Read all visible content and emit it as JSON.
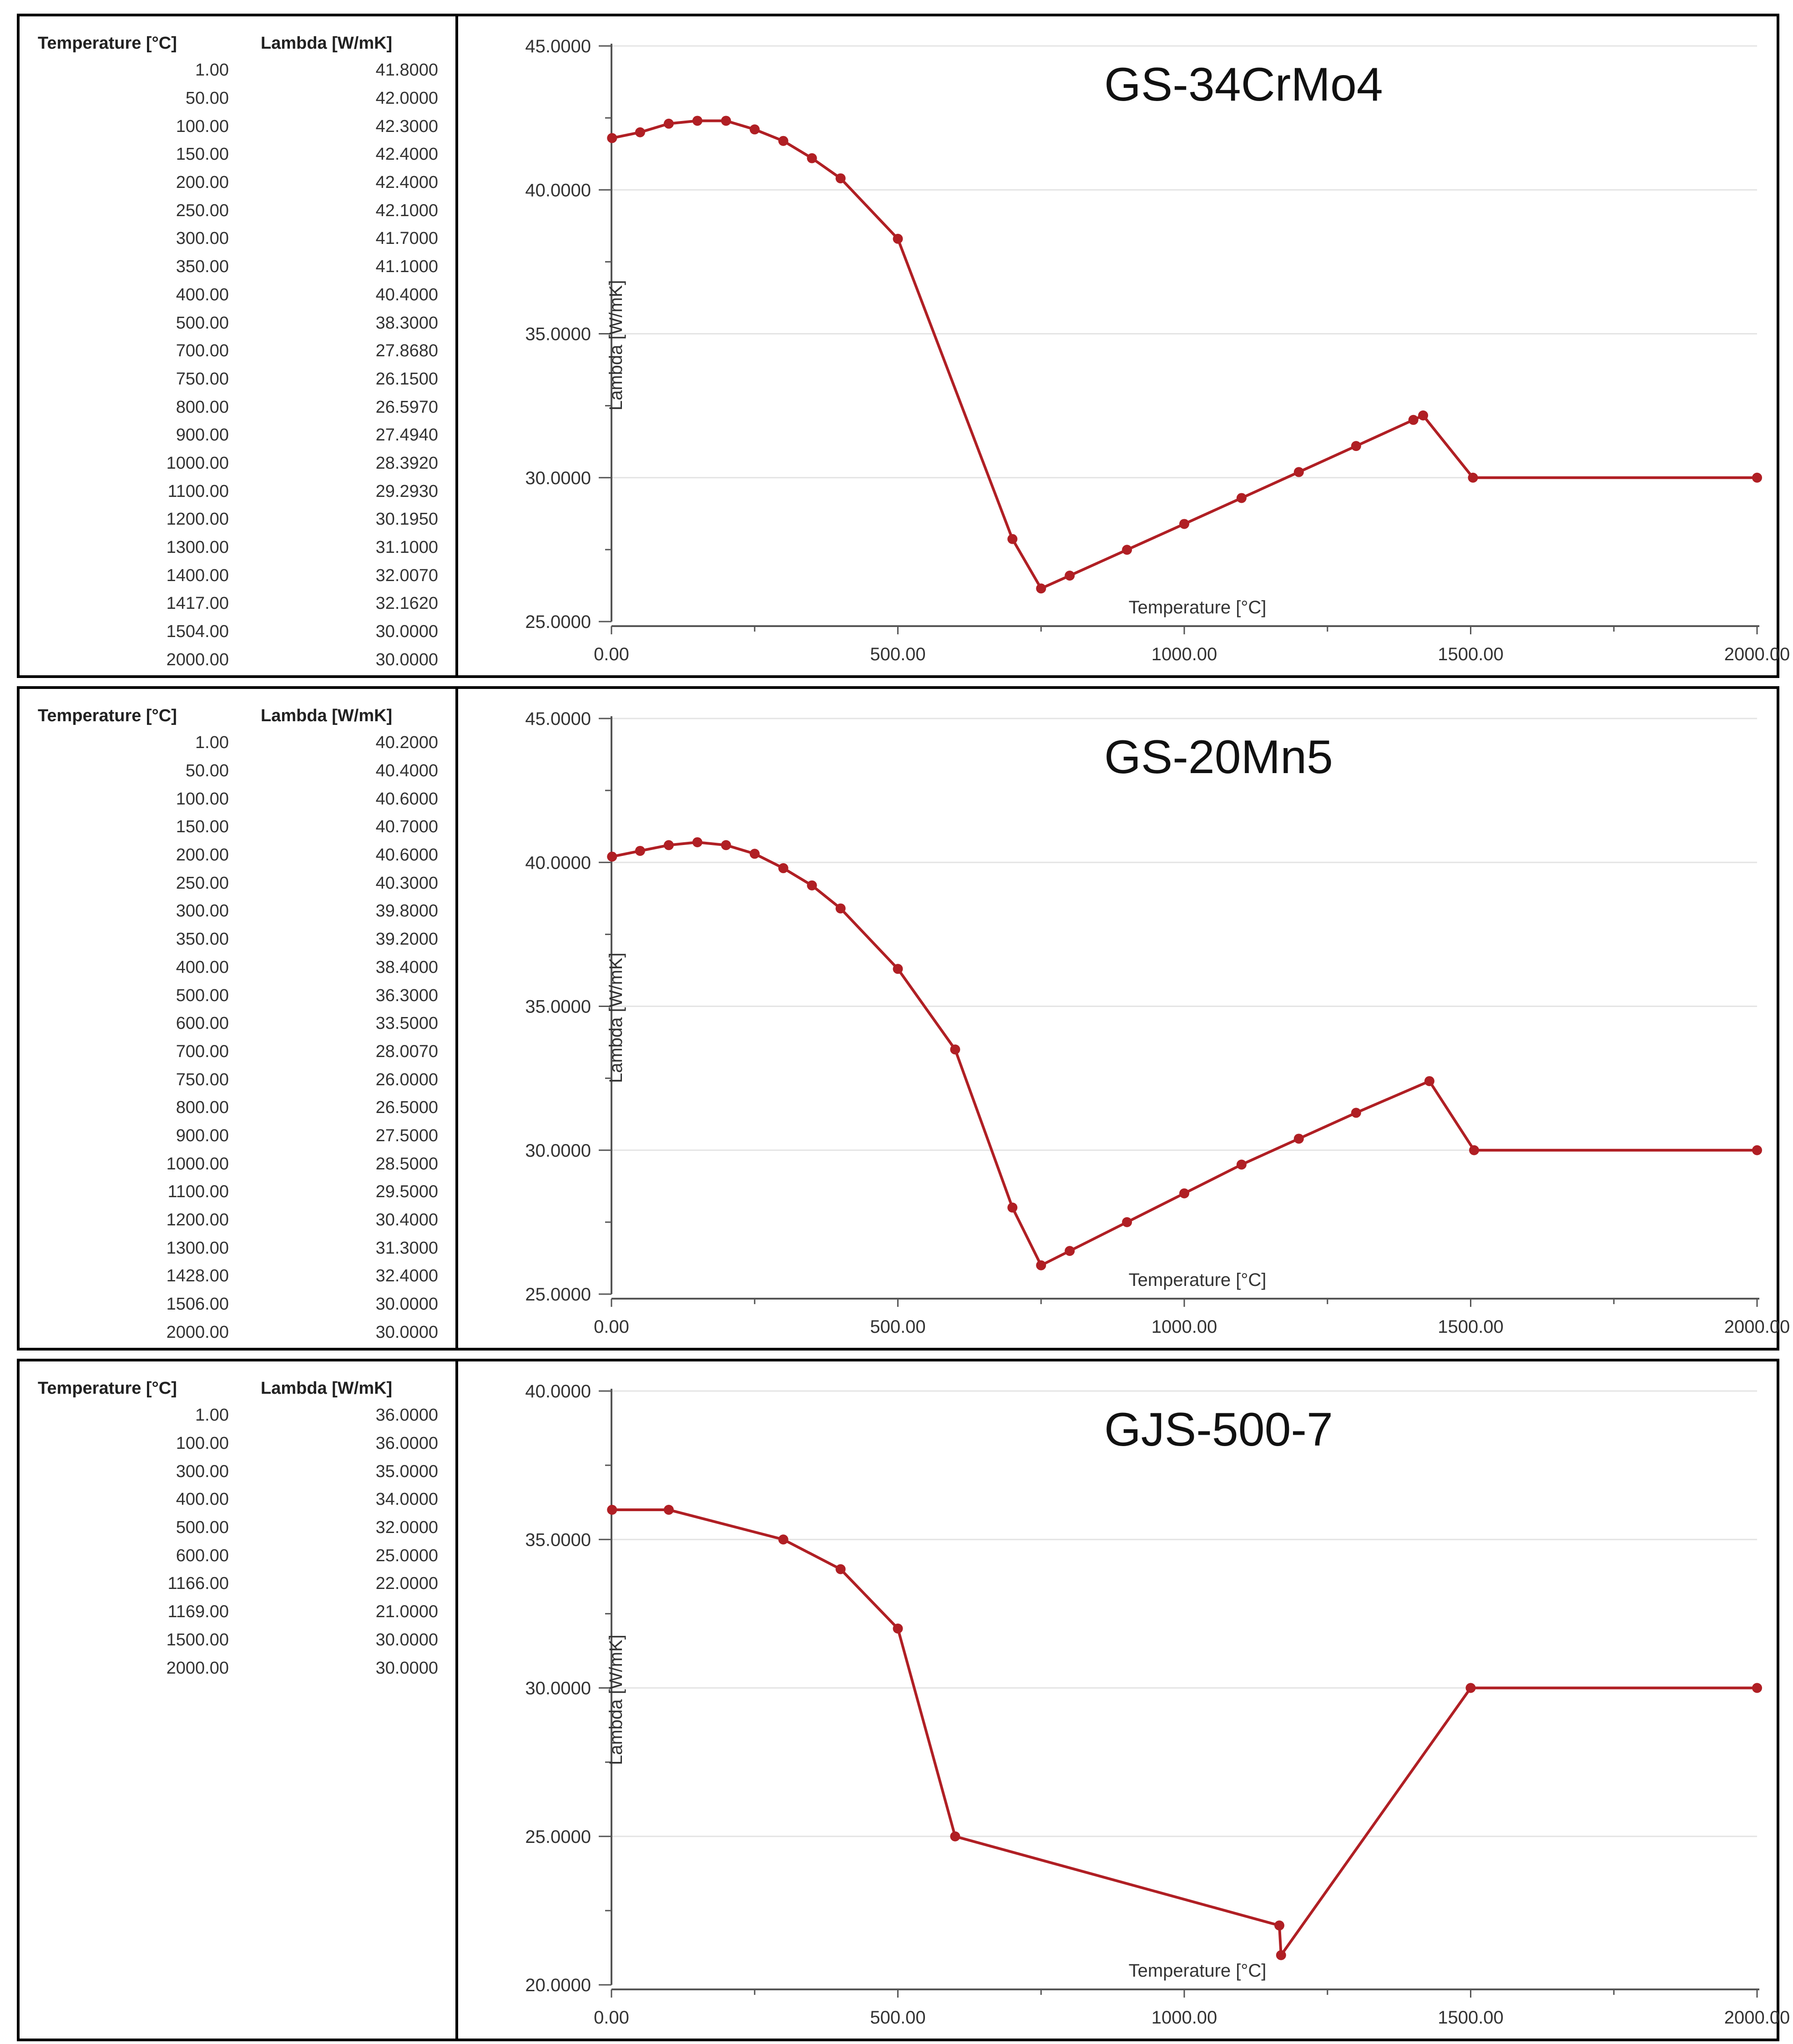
{
  "tables": [
    {
      "headers": [
        "Temperature [°C]",
        "Lambda [W/mK]"
      ],
      "rows": [
        [
          "1.00",
          "41.8000"
        ],
        [
          "50.00",
          "42.0000"
        ],
        [
          "100.00",
          "42.3000"
        ],
        [
          "150.00",
          "42.4000"
        ],
        [
          "200.00",
          "42.4000"
        ],
        [
          "250.00",
          "42.1000"
        ],
        [
          "300.00",
          "41.7000"
        ],
        [
          "350.00",
          "41.1000"
        ],
        [
          "400.00",
          "40.4000"
        ],
        [
          "500.00",
          "38.3000"
        ],
        [
          "700.00",
          "27.8680"
        ],
        [
          "750.00",
          "26.1500"
        ],
        [
          "800.00",
          "26.5970"
        ],
        [
          "900.00",
          "27.4940"
        ],
        [
          "1000.00",
          "28.3920"
        ],
        [
          "1100.00",
          "29.2930"
        ],
        [
          "1200.00",
          "30.1950"
        ],
        [
          "1300.00",
          "31.1000"
        ],
        [
          "1400.00",
          "32.0070"
        ],
        [
          "1417.00",
          "32.1620"
        ],
        [
          "1504.00",
          "30.0000"
        ],
        [
          "2000.00",
          "30.0000"
        ]
      ]
    },
    {
      "headers": [
        "Temperature [°C]",
        "Lambda [W/mK]"
      ],
      "rows": [
        [
          "1.00",
          "40.2000"
        ],
        [
          "50.00",
          "40.4000"
        ],
        [
          "100.00",
          "40.6000"
        ],
        [
          "150.00",
          "40.7000"
        ],
        [
          "200.00",
          "40.6000"
        ],
        [
          "250.00",
          "40.3000"
        ],
        [
          "300.00",
          "39.8000"
        ],
        [
          "350.00",
          "39.2000"
        ],
        [
          "400.00",
          "38.4000"
        ],
        [
          "500.00",
          "36.3000"
        ],
        [
          "600.00",
          "33.5000"
        ],
        [
          "700.00",
          "28.0070"
        ],
        [
          "750.00",
          "26.0000"
        ],
        [
          "800.00",
          "26.5000"
        ],
        [
          "900.00",
          "27.5000"
        ],
        [
          "1000.00",
          "28.5000"
        ],
        [
          "1100.00",
          "29.5000"
        ],
        [
          "1200.00",
          "30.4000"
        ],
        [
          "1300.00",
          "31.3000"
        ],
        [
          "1428.00",
          "32.4000"
        ],
        [
          "1506.00",
          "30.0000"
        ],
        [
          "2000.00",
          "30.0000"
        ]
      ]
    },
    {
      "headers": [
        "Temperature [°C]",
        "Lambda [W/mK]"
      ],
      "rows": [
        [
          "1.00",
          "36.0000"
        ],
        [
          "100.00",
          "36.0000"
        ],
        [
          "300.00",
          "35.0000"
        ],
        [
          "400.00",
          "34.0000"
        ],
        [
          "500.00",
          "32.0000"
        ],
        [
          "600.00",
          "25.0000"
        ],
        [
          "1166.00",
          "22.0000"
        ],
        [
          "1169.00",
          "21.0000"
        ],
        [
          "1500.00",
          "30.0000"
        ],
        [
          "2000.00",
          "30.0000"
        ]
      ]
    }
  ],
  "chart_data": [
    {
      "type": "line",
      "title": "GS-34CrMo4",
      "xlabel": "Temperature  [°C]",
      "ylabel": "Lambda [W/mK]",
      "x": [
        1,
        50,
        100,
        150,
        200,
        250,
        300,
        350,
        400,
        500,
        700,
        750,
        800,
        900,
        1000,
        1100,
        1200,
        1300,
        1400,
        1417,
        1504,
        2000
      ],
      "y": [
        41.8,
        42.0,
        42.3,
        42.4,
        42.4,
        42.1,
        41.7,
        41.1,
        40.4,
        38.3,
        27.868,
        26.15,
        26.597,
        27.494,
        28.392,
        29.293,
        30.195,
        31.1,
        32.007,
        32.162,
        30.0,
        30.0
      ],
      "xlim": [
        0,
        2000
      ],
      "ylim": [
        25,
        45
      ],
      "xticks": [
        "0.00",
        "500.00",
        "1000.00",
        "1500.00",
        "2000.00"
      ],
      "yticks": [
        "25.0000",
        "30.0000",
        "35.0000",
        "40.0000",
        "45.0000"
      ],
      "grid": true,
      "color": "#b01f24"
    },
    {
      "type": "line",
      "title": "GS-20Mn5",
      "xlabel": "Temperature  [°C]",
      "ylabel": "Lambda [W/mK]",
      "x": [
        1,
        50,
        100,
        150,
        200,
        250,
        300,
        350,
        400,
        500,
        600,
        700,
        750,
        800,
        900,
        1000,
        1100,
        1200,
        1300,
        1428,
        1506,
        2000
      ],
      "y": [
        40.2,
        40.4,
        40.6,
        40.7,
        40.6,
        40.3,
        39.8,
        39.2,
        38.4,
        36.3,
        33.5,
        28.007,
        26.0,
        26.5,
        27.5,
        28.5,
        29.5,
        30.4,
        31.3,
        32.4,
        30.0,
        30.0
      ],
      "xlim": [
        0,
        2000
      ],
      "ylim": [
        25,
        45
      ],
      "xticks": [
        "0.00",
        "500.00",
        "1000.00",
        "1500.00",
        "2000.00"
      ],
      "yticks": [
        "25.0000",
        "30.0000",
        "35.0000",
        "40.0000",
        "45.0000"
      ],
      "grid": true,
      "color": "#b01f24"
    },
    {
      "type": "line",
      "title": "GJS-500-7",
      "xlabel": "Temperature  [°C]",
      "ylabel": "Lambda [W/mK]",
      "x": [
        1,
        100,
        300,
        400,
        500,
        600,
        1166,
        1169,
        1500,
        2000
      ],
      "y": [
        36.0,
        36.0,
        35.0,
        34.0,
        32.0,
        25.0,
        22.0,
        21.0,
        30.0,
        30.0
      ],
      "xlim": [
        0,
        2000
      ],
      "ylim": [
        20,
        40
      ],
      "xticks": [
        "0.00",
        "500.00",
        "1000.00",
        "1500.00",
        "2000.00"
      ],
      "yticks": [
        "20.0000",
        "25.0000",
        "30.0000",
        "35.0000",
        "40.0000"
      ],
      "grid": true,
      "color": "#b01f24"
    }
  ]
}
